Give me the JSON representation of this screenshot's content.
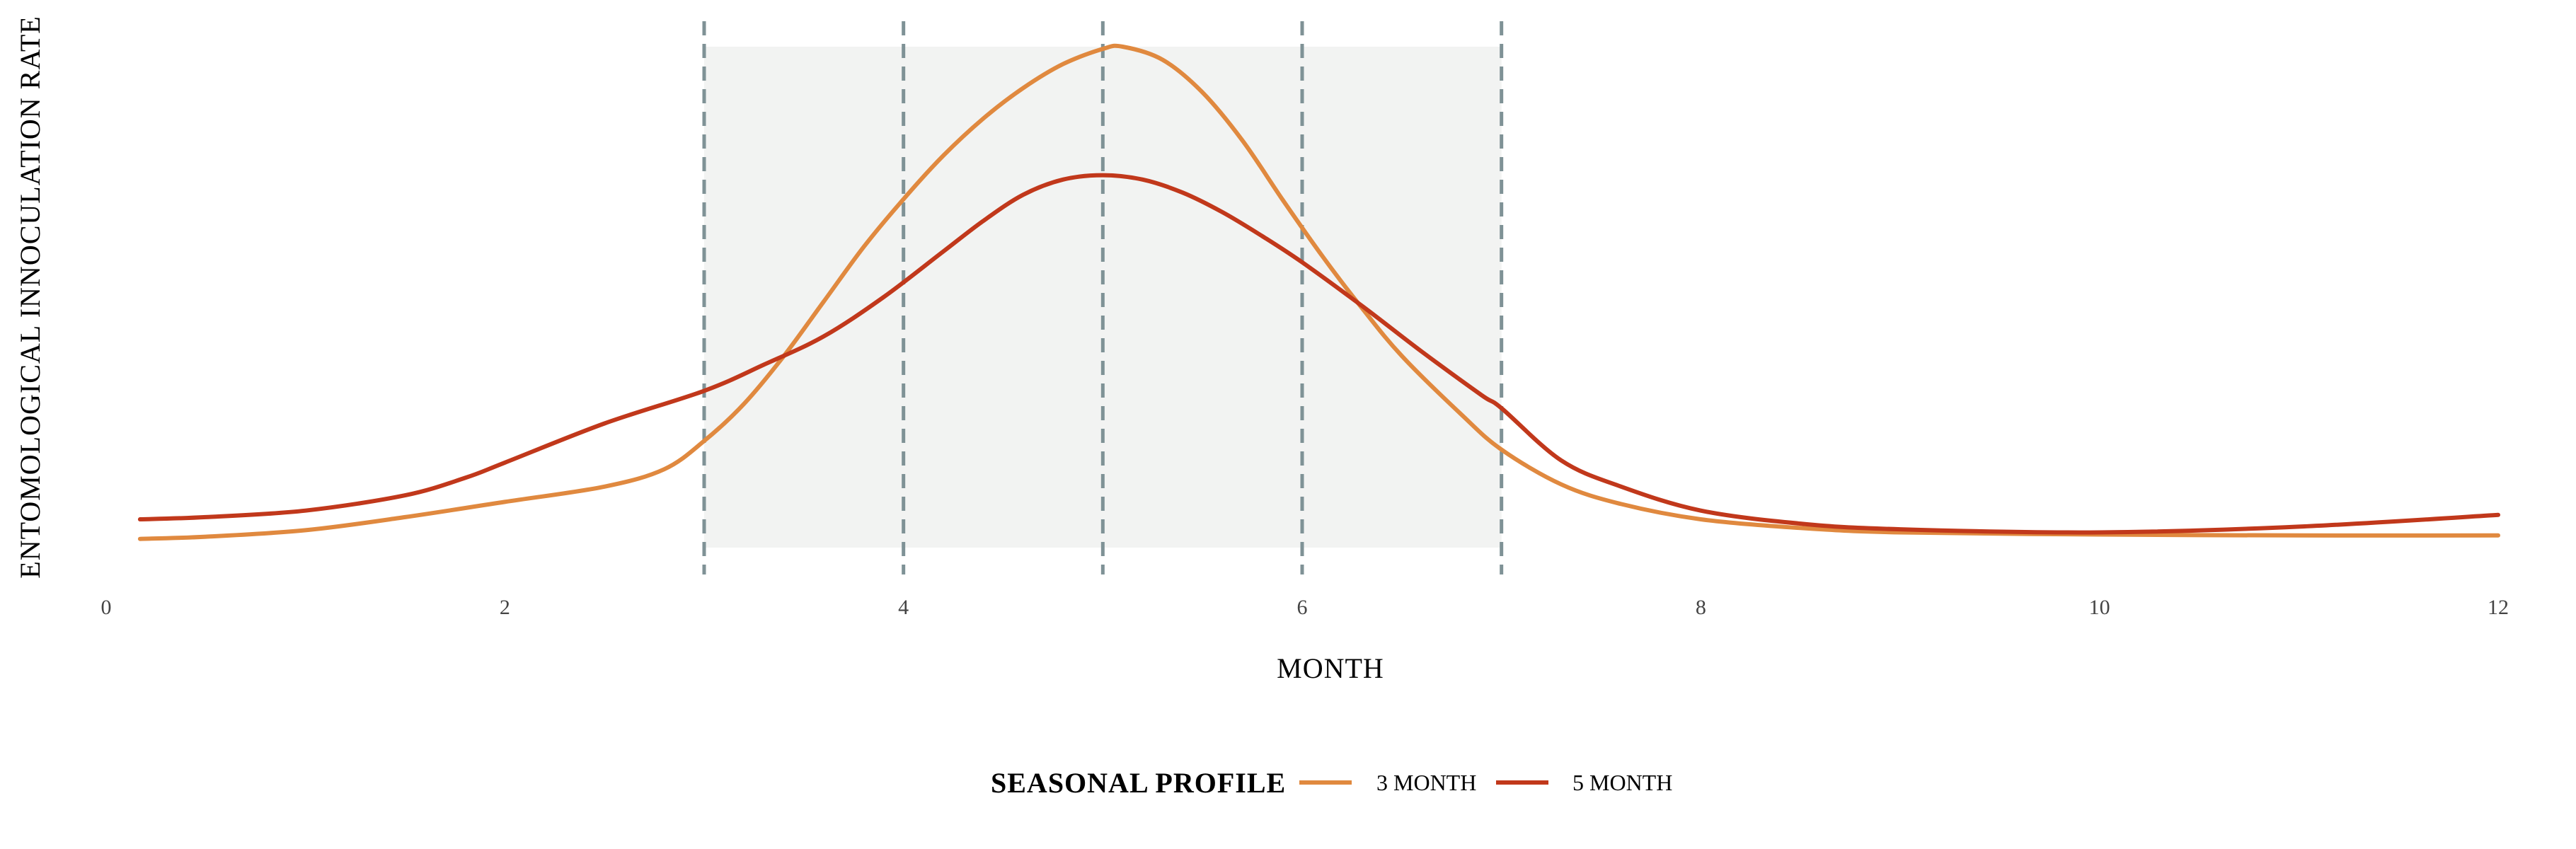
{
  "chart_data": {
    "type": "line",
    "xlabel": "MONTH",
    "ylabel": "ENTOMOLOGICAL INNOCULATION RATE",
    "xlim": [
      0,
      12
    ],
    "x_ticks": [
      0,
      2,
      4,
      6,
      8,
      10,
      12
    ],
    "y_ticks_shown": false,
    "grid": false,
    "shaded_region": {
      "x_start": 3,
      "x_end": 7,
      "color": "#f2f3f2"
    },
    "vertical_lines": {
      "x": [
        3,
        4,
        5,
        6,
        7
      ],
      "color": "#7f9296",
      "style": "dashed"
    },
    "legend": {
      "title": "SEASONAL PROFILE",
      "position": "bottom"
    },
    "series": [
      {
        "name": "3 MONTH",
        "color": "#e0893f",
        "x": [
          0.17,
          0.5,
          1.0,
          1.5,
          2.0,
          2.5,
          2.8,
          3.0,
          3.2,
          3.4,
          3.6,
          3.8,
          4.0,
          4.2,
          4.4,
          4.6,
          4.8,
          5.0,
          5.1,
          5.3,
          5.5,
          5.7,
          5.9,
          6.1,
          6.3,
          6.5,
          6.8,
          7.0,
          7.3,
          7.6,
          8.0,
          8.5,
          9.0,
          10.0,
          11.0,
          12.0
        ],
        "y": [
          0.02,
          0.025,
          0.04,
          0.07,
          0.105,
          0.14,
          0.18,
          0.245,
          0.33,
          0.44,
          0.565,
          0.69,
          0.8,
          0.9,
          0.985,
          1.055,
          1.11,
          1.145,
          1.15,
          1.12,
          1.045,
          0.935,
          0.8,
          0.67,
          0.55,
          0.44,
          0.305,
          0.225,
          0.145,
          0.1,
          0.065,
          0.045,
          0.035,
          0.03,
          0.028,
          0.028
        ]
      },
      {
        "name": "5 MONTH",
        "color": "#c1381b",
        "x": [
          0.17,
          0.5,
          1.0,
          1.5,
          1.8,
          2.0,
          2.5,
          3.0,
          3.3,
          3.6,
          3.9,
          4.2,
          4.4,
          4.6,
          4.8,
          5.0,
          5.2,
          5.4,
          5.6,
          5.8,
          6.0,
          6.3,
          6.6,
          6.9,
          7.0,
          7.3,
          7.6,
          8.0,
          8.5,
          9.0,
          10.0,
          11.0,
          12.0
        ],
        "y": [
          0.065,
          0.07,
          0.085,
          0.12,
          0.16,
          0.195,
          0.285,
          0.36,
          0.42,
          0.485,
          0.575,
          0.68,
          0.75,
          0.81,
          0.845,
          0.855,
          0.845,
          0.815,
          0.77,
          0.715,
          0.655,
          0.555,
          0.45,
          0.35,
          0.32,
          0.2,
          0.14,
          0.085,
          0.055,
          0.042,
          0.035,
          0.048,
          0.075
        ]
      }
    ]
  }
}
